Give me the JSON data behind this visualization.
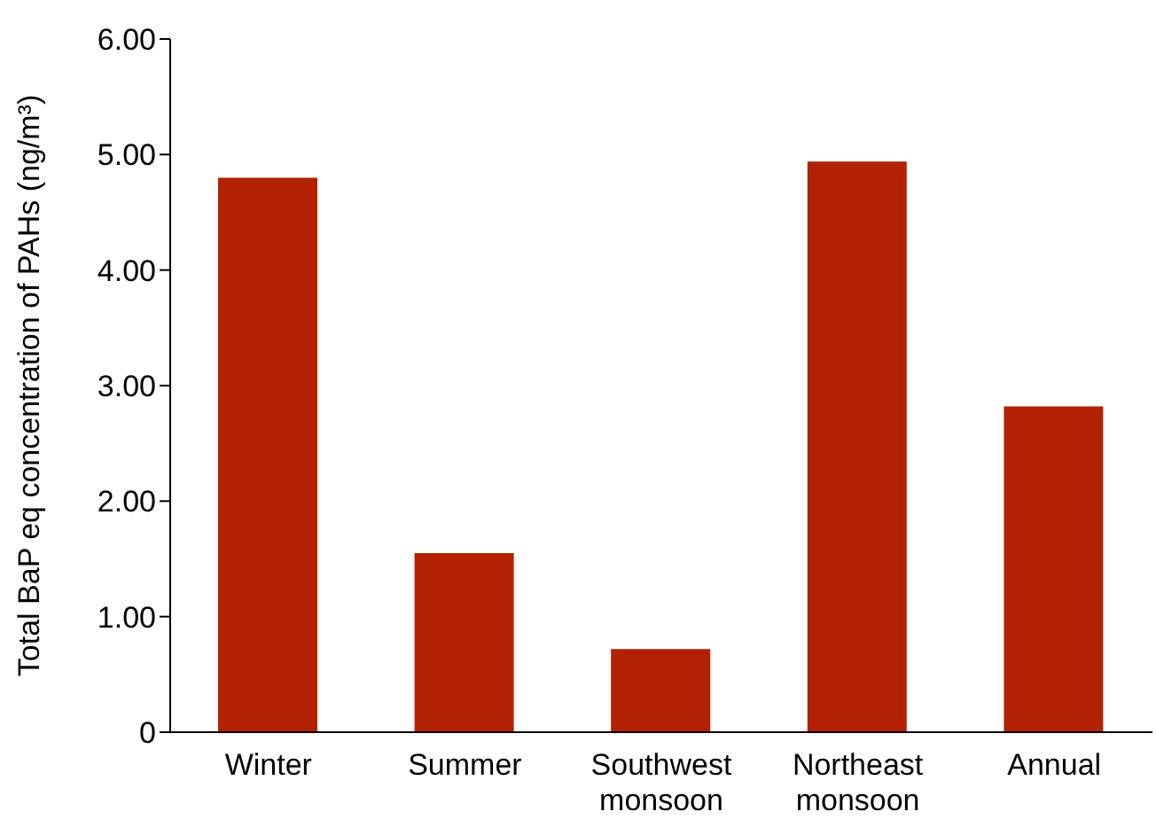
{
  "chart_data": {
    "type": "bar",
    "ylabel": "Total BaP eq concentration of PAHs (ng/m³)",
    "categories": [
      "Winter",
      "Summer",
      "Southwest monsoon",
      "Northeast monsoon",
      "Annual"
    ],
    "values": [
      4.8,
      1.55,
      0.72,
      4.94,
      2.82
    ],
    "color": "#b22200",
    "ylim": [
      0,
      6
    ],
    "yticks": [
      0,
      {
        "value": 1,
        "label": "1.00"
      },
      {
        "value": 2,
        "label": "2.00"
      },
      {
        "value": 3,
        "label": "3.00"
      },
      {
        "value": 4,
        "label": "4.00"
      },
      {
        "value": 5,
        "label": "5.00"
      },
      {
        "value": 6,
        "label": "6.00"
      }
    ],
    "grid": false
  }
}
